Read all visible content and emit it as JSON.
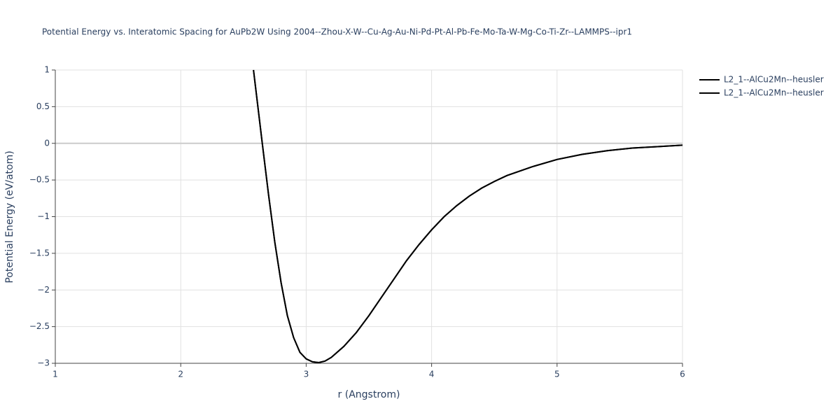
{
  "chart_data": {
    "type": "line",
    "title": "Potential Energy vs. Interatomic Spacing for AuPb2W Using 2004--Zhou-X-W--Cu-Ag-Au-Ni-Pd-Pt-Al-Pb-Fe-Mo-Ta-W-Mg-Co-Ti-Zr--LAMMPS--ipr1",
    "x_label": "r (Angstrom)",
    "y_label": "Potential Energy (eV/atom)",
    "xlim": [
      1,
      6
    ],
    "xticks": [
      1,
      2,
      3,
      4,
      5,
      6
    ],
    "ylim": [
      -3,
      1
    ],
    "yticks": [
      {
        "value": -3,
        "label": "−3"
      },
      {
        "value": -2.5,
        "label": "−2.5"
      },
      {
        "value": -2,
        "label": "−2"
      },
      {
        "value": -1.5,
        "label": "−1.5"
      },
      {
        "value": -1,
        "label": "−1"
      },
      {
        "value": -0.5,
        "label": "−0.5"
      },
      0,
      0.5,
      1
    ],
    "grid": true,
    "legend": "top-right",
    "series": [
      {
        "name": "L2_1--AlCu2Mn--heusler",
        "color": "#000000",
        "x": [
          2.58,
          2.65,
          2.7,
          2.75,
          2.8,
          2.85,
          2.9,
          2.95,
          3.0,
          3.05,
          3.1,
          3.15,
          3.2,
          3.3,
          3.4,
          3.5,
          3.6,
          3.7,
          3.8,
          3.9,
          4.0,
          4.1,
          4.2,
          4.3,
          4.4,
          4.5,
          4.6,
          4.8,
          5.0,
          5.2,
          5.4,
          5.6,
          5.8,
          6.0
        ],
        "values": [
          1.0,
          0.0,
          -0.7,
          -1.35,
          -1.9,
          -2.35,
          -2.65,
          -2.85,
          -2.94,
          -2.98,
          -2.99,
          -2.97,
          -2.92,
          -2.77,
          -2.58,
          -2.35,
          -2.1,
          -1.85,
          -1.6,
          -1.38,
          -1.18,
          -1.0,
          -0.85,
          -0.72,
          -0.61,
          -0.52,
          -0.44,
          -0.32,
          -0.22,
          -0.15,
          -0.1,
          -0.065,
          -0.045,
          -0.025
        ]
      },
      {
        "name": "L2_1--AlCu2Mn--heusler",
        "color": "#000000",
        "x": [
          2.58,
          2.65,
          2.7,
          2.75,
          2.8,
          2.85,
          2.9,
          2.95,
          3.0,
          3.05,
          3.1,
          3.15,
          3.2,
          3.3,
          3.4,
          3.5,
          3.6,
          3.7,
          3.8,
          3.9,
          4.0,
          4.1,
          4.2,
          4.3,
          4.4,
          4.5,
          4.6,
          4.8,
          5.0,
          5.2,
          5.4,
          5.6,
          5.8,
          6.0
        ],
        "values": [
          1.0,
          0.0,
          -0.7,
          -1.35,
          -1.9,
          -2.35,
          -2.65,
          -2.85,
          -2.94,
          -2.98,
          -2.99,
          -2.97,
          -2.92,
          -2.77,
          -2.58,
          -2.35,
          -2.1,
          -1.85,
          -1.6,
          -1.38,
          -1.18,
          -1.0,
          -0.85,
          -0.72,
          -0.61,
          -0.52,
          -0.44,
          -0.32,
          -0.22,
          -0.15,
          -0.1,
          -0.065,
          -0.045,
          -0.025
        ]
      }
    ]
  }
}
